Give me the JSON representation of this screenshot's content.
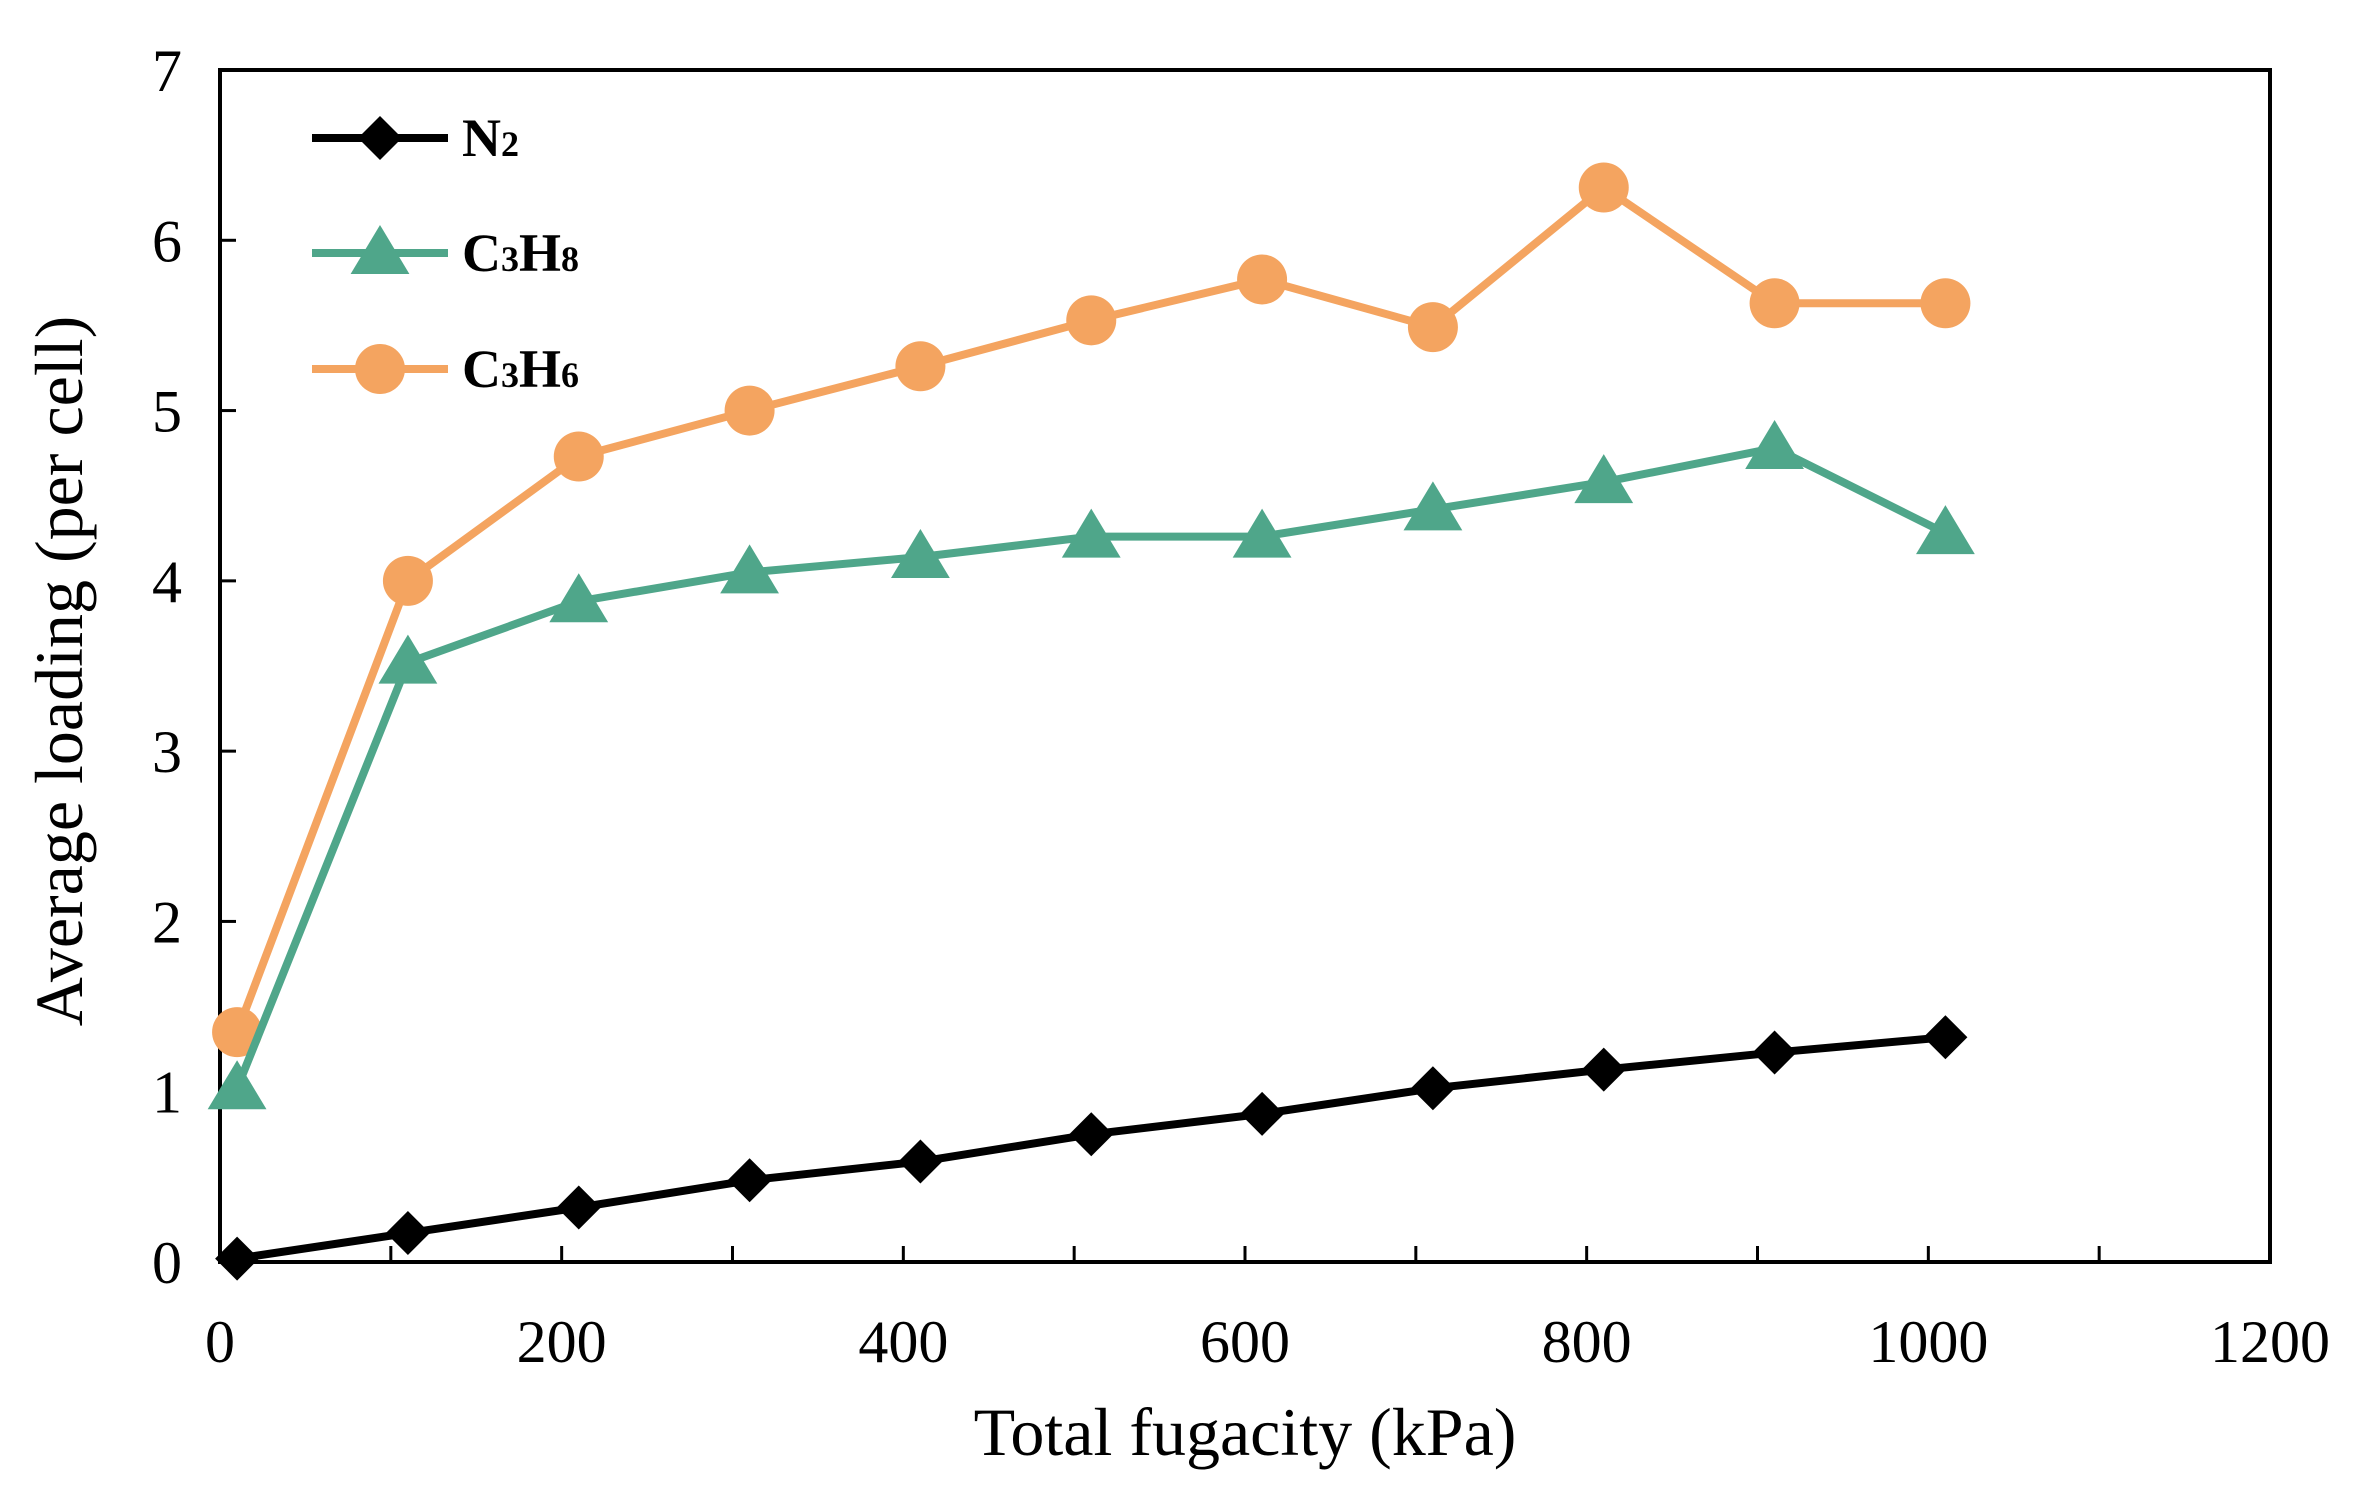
{
  "chart_data": {
    "type": "line",
    "title": "",
    "xlabel": "Total fugacity (kPa)",
    "ylabel": "Average loading (per cell)",
    "xlim": [
      0,
      1200
    ],
    "ylim": [
      0,
      7
    ],
    "xticks": [
      0,
      200,
      400,
      600,
      800,
      1000,
      1200
    ],
    "yticks": [
      0,
      1,
      2,
      3,
      4,
      5,
      6,
      7
    ],
    "grid": false,
    "legend_position": "top-left",
    "x": [
      10,
      110,
      210,
      310,
      410,
      510,
      610,
      710,
      810,
      910,
      1010
    ],
    "series": [
      {
        "name": "N2",
        "label_main": "N",
        "label_sub": "2",
        "label_parts": [
          {
            "t": "N",
            "sub": false
          },
          {
            "t": "2",
            "sub": true
          }
        ],
        "color": "#000000",
        "marker": "diamond",
        "values": [
          0.02,
          0.17,
          0.32,
          0.48,
          0.59,
          0.75,
          0.87,
          1.02,
          1.13,
          1.23,
          1.32
        ]
      },
      {
        "name": "C3H8",
        "label_parts": [
          {
            "t": "C",
            "sub": false
          },
          {
            "t": "3",
            "sub": true
          },
          {
            "t": "H",
            "sub": false
          },
          {
            "t": "8",
            "sub": true
          }
        ],
        "color": "#4fa68a",
        "marker": "triangle",
        "values": [
          1.02,
          3.52,
          3.88,
          4.05,
          4.14,
          4.26,
          4.26,
          4.42,
          4.58,
          4.78,
          4.28
        ]
      },
      {
        "name": "C3H6",
        "label_parts": [
          {
            "t": "C",
            "sub": false
          },
          {
            "t": "3",
            "sub": true
          },
          {
            "t": "H",
            "sub": false
          },
          {
            "t": "6",
            "sub": true
          }
        ],
        "color": "#f4a460",
        "marker": "circle",
        "values": [
          1.35,
          4.0,
          4.73,
          5.0,
          5.26,
          5.53,
          5.77,
          5.49,
          6.31,
          5.63,
          5.63
        ]
      }
    ]
  }
}
